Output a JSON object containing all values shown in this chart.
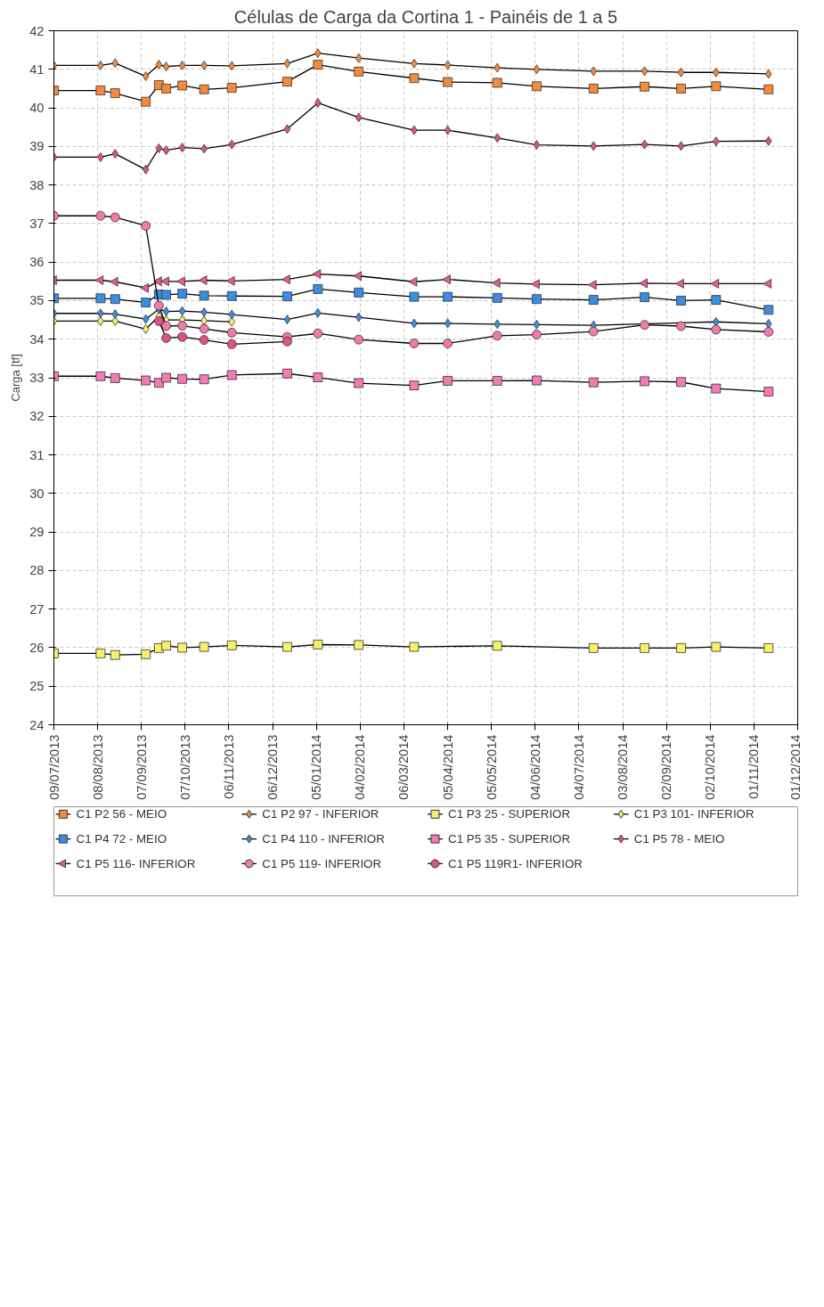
{
  "chart_data": {
    "type": "line",
    "title": "Células de Carga da Cortina 1 - Painéis de 1 a 5",
    "ylabel": "Carga [tf]",
    "x": [
      "2013-07-09",
      "2013-08-10",
      "2013-08-20",
      "2013-09-10",
      "2013-09-19",
      "2013-09-24",
      "2013-10-05",
      "2013-10-20",
      "2013-11-08",
      "2013-12-16",
      "2014-01-06",
      "2014-02-03",
      "2014-03-13",
      "2014-04-05",
      "2014-05-09",
      "2014-06-05",
      "2014-07-14",
      "2014-08-18",
      "2014-09-12",
      "2014-10-06",
      "2014-11-11"
    ],
    "xlim": [
      "2013-07-09",
      "2014-12-01"
    ],
    "xticks": [
      {
        "value": "2013-07-09",
        "label": "09/07/2013"
      },
      {
        "value": "2013-08-08",
        "label": "08/08/2013"
      },
      {
        "value": "2013-09-07",
        "label": "07/09/2013"
      },
      {
        "value": "2013-10-07",
        "label": "07/10/2013"
      },
      {
        "value": "2013-11-06",
        "label": "06/11/2013"
      },
      {
        "value": "2013-12-06",
        "label": "06/12/2013"
      },
      {
        "value": "2014-01-05",
        "label": "05/01/2014"
      },
      {
        "value": "2014-02-04",
        "label": "04/02/2014"
      },
      {
        "value": "2014-03-06",
        "label": "06/03/2014"
      },
      {
        "value": "2014-04-05",
        "label": "05/04/2014"
      },
      {
        "value": "2014-05-05",
        "label": "05/05/2014"
      },
      {
        "value": "2014-06-04",
        "label": "04/06/2014"
      },
      {
        "value": "2014-07-04",
        "label": "04/07/2014"
      },
      {
        "value": "2014-08-03",
        "label": "03/08/2014"
      },
      {
        "value": "2014-09-02",
        "label": "02/09/2014"
      },
      {
        "value": "2014-10-02",
        "label": "02/10/2014"
      },
      {
        "value": "2014-11-01",
        "label": "01/11/2014"
      },
      {
        "value": "2014-12-01",
        "label": "01/12/2014"
      }
    ],
    "ylim": [
      24,
      42
    ],
    "yticks": [
      24,
      25,
      26,
      27,
      28,
      29,
      30,
      31,
      32,
      33,
      34,
      35,
      36,
      37,
      38,
      39,
      40,
      41,
      42
    ],
    "grid": true,
    "legend": "bottom",
    "line_style": "solid",
    "series": [
      {
        "name": "C1 P2 56 - MEIO",
        "color": "#f58a3c",
        "marker": "square",
        "values": [
          40.45,
          40.45,
          40.38,
          40.16,
          40.59,
          40.5,
          40.58,
          40.48,
          40.52,
          40.68,
          41.12,
          40.94,
          40.77,
          40.67,
          40.65,
          40.56,
          40.5,
          40.55,
          40.5,
          40.56,
          40.48
        ]
      },
      {
        "name": "C1 P2 97 - INFERIOR",
        "color": "#f58a3c",
        "marker": "diamond",
        "values": [
          41.1,
          41.1,
          41.16,
          40.82,
          41.12,
          41.07,
          41.1,
          41.1,
          41.09,
          41.15,
          41.42,
          41.29,
          41.15,
          41.11,
          41.04,
          41.0,
          40.95,
          40.95,
          40.92,
          40.92,
          40.88
        ]
      },
      {
        "name": "C1 P3 25 - SUPERIOR",
        "color": "#f7f06a",
        "marker": "square",
        "values": [
          25.85,
          25.85,
          25.81,
          25.83,
          25.99,
          26.05,
          26.0,
          26.02,
          26.06,
          26.02,
          26.08,
          26.07,
          26.02,
          null,
          26.05,
          null,
          25.99,
          25.99,
          25.99,
          26.02,
          25.99
        ]
      },
      {
        "name": "C1 P3 101- INFERIOR",
        "color": "#f7f06a",
        "marker": "diamond",
        "values": [
          34.47,
          34.47,
          34.47,
          34.26,
          34.6,
          34.5,
          34.5,
          34.48,
          34.45,
          null,
          null,
          null,
          null,
          null,
          null,
          null,
          null,
          null,
          null,
          null,
          null
        ]
      },
      {
        "name": "C1 P4 72 - MEIO",
        "color": "#3a8ee0",
        "marker": "square",
        "values": [
          35.06,
          35.06,
          35.04,
          34.95,
          35.16,
          35.15,
          35.18,
          35.13,
          35.12,
          35.11,
          35.3,
          35.21,
          35.1,
          35.1,
          35.07,
          35.04,
          35.02,
          35.09,
          35.0,
          35.02,
          34.76
        ]
      },
      {
        "name": "C1 P4 110 - INFERIOR",
        "color": "#3a8ee0",
        "marker": "diamond",
        "values": [
          34.67,
          34.67,
          34.65,
          34.52,
          34.78,
          34.72,
          34.73,
          34.7,
          34.64,
          34.51,
          34.68,
          34.57,
          34.41,
          34.41,
          34.39,
          34.38,
          34.36,
          null,
          null,
          34.45,
          34.4
        ]
      },
      {
        "name": "C1 P5 35 - SUPERIOR",
        "color": "#f47ab5",
        "marker": "square",
        "values": [
          33.04,
          33.04,
          32.99,
          32.93,
          32.87,
          33.0,
          32.97,
          32.96,
          33.07,
          33.11,
          33.01,
          32.86,
          32.8,
          32.92,
          32.92,
          32.93,
          32.88,
          32.91,
          32.89,
          32.72,
          32.64
        ]
      },
      {
        "name": "C1 P5 78 - MEIO",
        "color": "#e0508a",
        "marker": "diamond",
        "values": [
          38.72,
          38.72,
          38.81,
          38.4,
          38.95,
          38.9,
          38.97,
          38.94,
          39.05,
          39.45,
          40.13,
          39.75,
          39.42,
          39.42,
          39.22,
          39.04,
          39.01,
          39.05,
          39.01,
          39.13,
          39.14
        ]
      },
      {
        "name": "C1 P5 116- INFERIOR",
        "color": "#e85a9a",
        "marker": "triangle",
        "values": [
          35.53,
          35.53,
          35.49,
          35.33,
          35.5,
          35.5,
          35.5,
          35.53,
          35.51,
          35.55,
          35.69,
          35.64,
          35.49,
          35.55,
          35.46,
          35.43,
          35.41,
          35.45,
          35.44,
          35.44,
          35.44
        ]
      },
      {
        "name": "C1 P5 119- INFERIOR",
        "color": "#f07aaa",
        "marker": "circle",
        "values": [
          37.2,
          37.2,
          37.16,
          36.94,
          34.87,
          34.34,
          34.35,
          34.27,
          34.17,
          34.06,
          34.15,
          33.99,
          33.89,
          33.89,
          34.09,
          34.12,
          34.2,
          34.37,
          34.34,
          34.25,
          34.19
        ]
      },
      {
        "name": "C1 P5 119R1- INFERIOR",
        "color": "#e0508a",
        "marker": "circle",
        "values": [
          null,
          null,
          null,
          null,
          34.47,
          34.03,
          34.06,
          33.98,
          33.87,
          33.94,
          null,
          null,
          null,
          null,
          null,
          null,
          null,
          null,
          null,
          null,
          null
        ]
      }
    ]
  }
}
